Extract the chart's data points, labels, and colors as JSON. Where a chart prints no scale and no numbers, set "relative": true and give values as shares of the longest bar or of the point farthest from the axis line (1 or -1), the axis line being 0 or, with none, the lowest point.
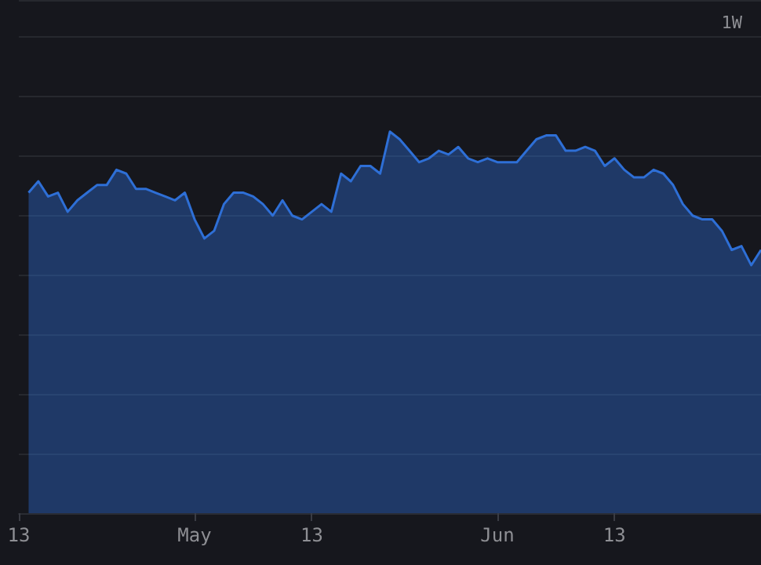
{
  "chart_data": {
    "type": "area",
    "relative": true,
    "grid": "y",
    "annotations": [
      "1W"
    ],
    "xlim": [
      "--04-13",
      "--06-28"
    ],
    "xticks": [
      {
        "value": "--04-13",
        "label": "13"
      },
      {
        "value": "--05-01",
        "label": "May"
      },
      {
        "value": "--05-13",
        "label": "13"
      },
      {
        "value": "--06-01",
        "label": "Jun"
      },
      {
        "value": "--06-13",
        "label": "13"
      }
    ],
    "x": [
      "--04-14",
      "--04-15",
      "--04-16",
      "--04-17",
      "--04-18",
      "--04-19",
      "--04-20",
      "--04-21",
      "--04-22",
      "--04-23",
      "--04-24",
      "--04-25",
      "--04-26",
      "--04-27",
      "--04-28",
      "--04-29",
      "--04-30",
      "--05-01",
      "--05-02",
      "--05-03",
      "--05-04",
      "--05-05",
      "--05-06",
      "--05-07",
      "--05-08",
      "--05-09",
      "--05-10",
      "--05-11",
      "--05-12",
      "--05-13",
      "--05-14",
      "--05-15",
      "--05-16",
      "--05-17",
      "--05-18",
      "--05-19",
      "--05-20",
      "--05-21",
      "--05-22",
      "--05-23",
      "--05-24",
      "--05-25",
      "--05-26",
      "--05-27",
      "--05-28",
      "--05-29",
      "--05-30",
      "--05-31",
      "--06-01",
      "--06-02",
      "--06-03",
      "--06-04",
      "--06-05",
      "--06-06",
      "--06-07",
      "--06-08",
      "--06-09",
      "--06-10",
      "--06-11",
      "--06-12",
      "--06-13",
      "--06-14",
      "--06-15",
      "--06-16",
      "--06-17",
      "--06-18",
      "--06-19",
      "--06-20",
      "--06-21",
      "--06-22",
      "--06-23",
      "--06-24",
      "--06-25",
      "--06-26",
      "--06-27",
      "--06-28"
    ],
    "series": [
      {
        "color": "#2e6fd6",
        "values": [
          0.84,
          0.87,
          0.83,
          0.84,
          0.79,
          0.82,
          0.84,
          0.86,
          0.86,
          0.9,
          0.89,
          0.85,
          0.85,
          0.84,
          0.83,
          0.82,
          0.84,
          0.77,
          0.72,
          0.74,
          0.81,
          0.84,
          0.84,
          0.83,
          0.81,
          0.78,
          0.82,
          0.78,
          0.77,
          0.79,
          0.81,
          0.79,
          0.89,
          0.87,
          0.91,
          0.91,
          0.89,
          1,
          0.98,
          0.95,
          0.92,
          0.93,
          0.95,
          0.94,
          0.96,
          0.93,
          0.92,
          0.93,
          0.92,
          0.92,
          0.92,
          0.95,
          0.98,
          0.99,
          0.99,
          0.95,
          0.95,
          0.96,
          0.95,
          0.91,
          0.93,
          0.9,
          0.88,
          0.88,
          0.9,
          0.89,
          0.86,
          0.81,
          0.78,
          0.77,
          0.77,
          0.74,
          0.69,
          0.7,
          0.65,
          0.69
        ]
      }
    ]
  }
}
